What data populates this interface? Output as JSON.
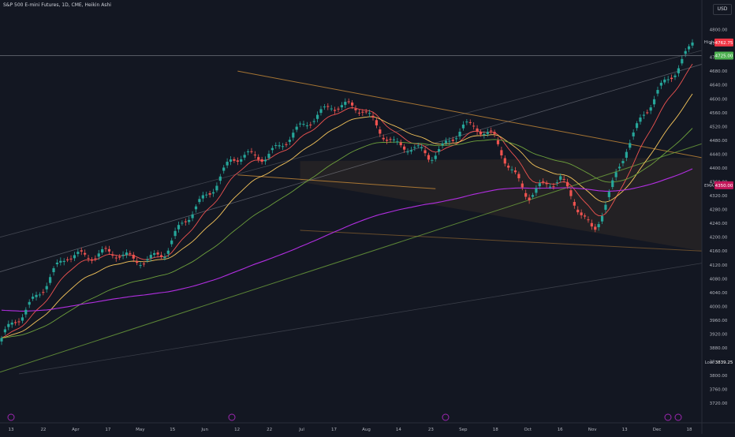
{
  "header": {
    "title": "S&P 500 E-mini Futures, 1D, CME, Heikin Ashi",
    "currency": "USD"
  },
  "price_scale": {
    "high_label": "High",
    "high_value": "4764.25",
    "low_label": "Low",
    "low_value": "3839.25",
    "ema_label": "EMA",
    "ema_value": "4350.00",
    "last_price": "4762.75",
    "marked_price": "4725.00"
  },
  "colors": {
    "background": "#131722",
    "up_candle": "#26a69a",
    "down_candle": "#ef5350",
    "ema_fast": "#ef5350",
    "ema_mid": "#f7c65b",
    "ema_slow": "#6ea13c",
    "ema_200": "#b12ee0",
    "channel": "#e39b3a",
    "axis_text": "#b2b5be",
    "badge_ema": "#c2185b",
    "badge_price": "#f23645"
  },
  "icons": {
    "event_markers": [
      "dividend-icon",
      "dividend-icon",
      "dividend-icon",
      "dividend-icon",
      "lightning-icon"
    ]
  },
  "chart_data": {
    "type": "candlestick",
    "title": "S&P 500 E-mini Futures, 1D, CME, Heikin Ashi",
    "ylim": [
      3700,
      4840
    ],
    "y_ticks": [
      "4800.00",
      "4760.00",
      "4720.00",
      "4680.00",
      "4640.00",
      "4600.00",
      "4560.00",
      "4520.00",
      "4480.00",
      "4440.00",
      "4400.00",
      "4360.00",
      "4320.00",
      "4280.00",
      "4240.00",
      "4200.00",
      "4160.00",
      "4120.00",
      "4080.00",
      "4040.00",
      "4000.00",
      "3960.00",
      "3920.00",
      "3880.00",
      "3840.00",
      "3800.00",
      "3760.00",
      "3720.00"
    ],
    "x_ticks": [
      "13",
      "22",
      "Apr",
      "17",
      "May",
      "15",
      "Jun",
      "12",
      "22",
      "Jul",
      "17",
      "Aug",
      "14",
      "23",
      "Sep",
      "18",
      "Oct",
      "16",
      "Nov",
      "13",
      "Dec",
      "18"
    ],
    "anchors": [
      {
        "date_label": "Mar 13",
        "close": 3900
      },
      {
        "date_label": "Mar 22",
        "close": 4030
      },
      {
        "date_label": "Apr",
        "close": 4140
      },
      {
        "date_label": "Apr 17",
        "close": 4160
      },
      {
        "date_label": "May",
        "close": 4130
      },
      {
        "date_label": "May 15",
        "close": 4160
      },
      {
        "date_label": "Jun",
        "close": 4300
      },
      {
        "date_label": "Jun 12",
        "close": 4420
      },
      {
        "date_label": "Jun 22",
        "close": 4440
      },
      {
        "date_label": "Jul",
        "close": 4500
      },
      {
        "date_label": "Jul 17",
        "close": 4590
      },
      {
        "date_label": "Aug",
        "close": 4560
      },
      {
        "date_label": "Aug 14",
        "close": 4470
      },
      {
        "date_label": "Aug 23",
        "close": 4430
      },
      {
        "date_label": "Sep",
        "close": 4520
      },
      {
        "date_label": "Sep 18",
        "close": 4490
      },
      {
        "date_label": "Oct",
        "close": 4310
      },
      {
        "date_label": "Oct 16",
        "close": 4380
      },
      {
        "date_label": "Nov",
        "close": 4200
      },
      {
        "date_label": "Nov 13",
        "close": 4470
      },
      {
        "date_label": "Dec",
        "close": 4620
      },
      {
        "date_label": "Dec 14",
        "close": 4762.75
      }
    ]
  }
}
